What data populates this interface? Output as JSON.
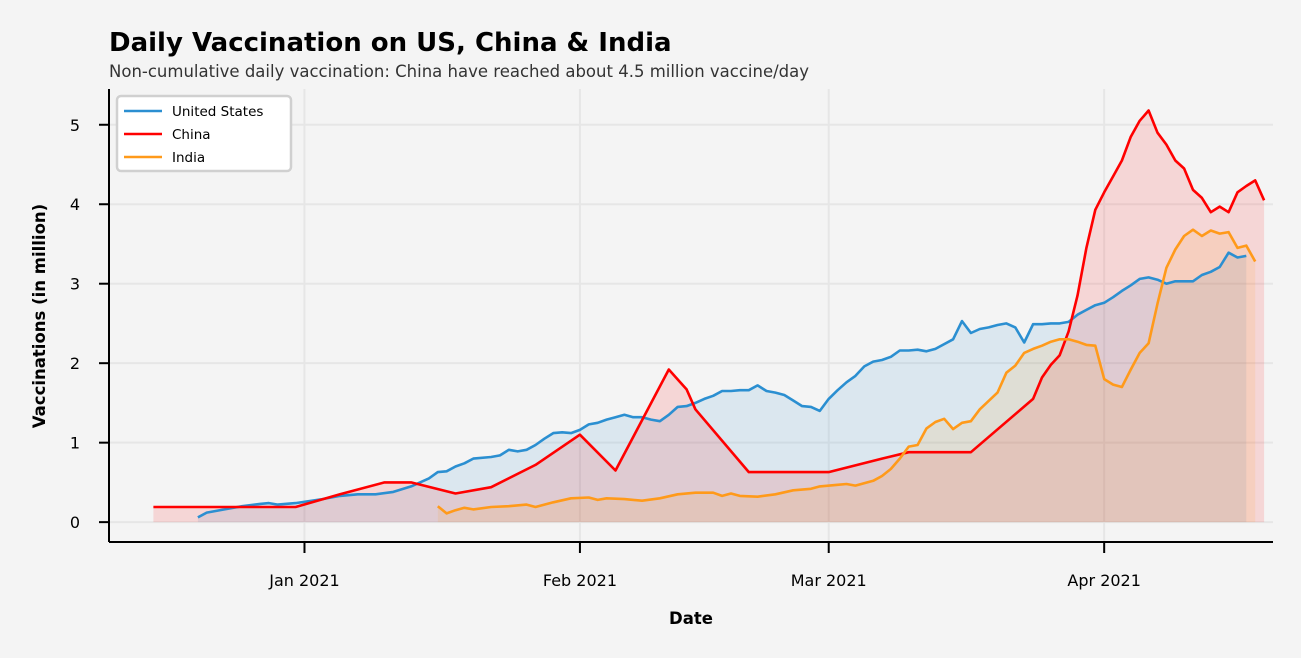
{
  "chart_data": {
    "type": "line",
    "title": "Daily Vaccination on US, China & India",
    "subtitle": "Non-cumulative daily vaccination: China have reached about 4.5 million vaccine/day",
    "xlabel": "Date",
    "ylabel": "Vaccinations (in million)",
    "x_ticks": [
      {
        "date": "2021-01-01",
        "label": "Jan 2021"
      },
      {
        "date": "2021-02-01",
        "label": "Feb 2021"
      },
      {
        "date": "2021-03-01",
        "label": "Mar 2021"
      },
      {
        "date": "2021-04-01",
        "label": "Apr 2021"
      }
    ],
    "y_ticks": [
      0,
      1,
      2,
      3,
      4,
      5
    ],
    "xlim": [
      "2020-12-10",
      "2021-04-20"
    ],
    "ylim": [
      -0.25,
      5.45
    ],
    "grid": true,
    "legend_position": "top-left",
    "series": [
      {
        "name": "United States",
        "color": "#2b8fd1",
        "points": [
          [
            "2020-12-20",
            0.06
          ],
          [
            "2020-12-21",
            0.12
          ],
          [
            "2020-12-23",
            0.16
          ],
          [
            "2020-12-25",
            0.2
          ],
          [
            "2020-12-27",
            0.23
          ],
          [
            "2020-12-28",
            0.24
          ],
          [
            "2020-12-29",
            0.22
          ],
          [
            "2020-12-31",
            0.24
          ],
          [
            "2021-01-03",
            0.29
          ],
          [
            "2021-01-05",
            0.33
          ],
          [
            "2021-01-07",
            0.35
          ],
          [
            "2021-01-09",
            0.35
          ],
          [
            "2021-01-11",
            0.38
          ],
          [
            "2021-01-13",
            0.45
          ],
          [
            "2021-01-15",
            0.55
          ],
          [
            "2021-01-16",
            0.63
          ],
          [
            "2021-01-17",
            0.64
          ],
          [
            "2021-01-18",
            0.7
          ],
          [
            "2021-01-19",
            0.74
          ],
          [
            "2021-01-20",
            0.8
          ],
          [
            "2021-01-22",
            0.82
          ],
          [
            "2021-01-23",
            0.84
          ],
          [
            "2021-01-24",
            0.91
          ],
          [
            "2021-01-25",
            0.89
          ],
          [
            "2021-01-26",
            0.91
          ],
          [
            "2021-01-27",
            0.97
          ],
          [
            "2021-01-28",
            1.05
          ],
          [
            "2021-01-29",
            1.12
          ],
          [
            "2021-01-30",
            1.13
          ],
          [
            "2021-01-31",
            1.12
          ],
          [
            "2021-02-01",
            1.16
          ],
          [
            "2021-02-02",
            1.23
          ],
          [
            "2021-02-03",
            1.25
          ],
          [
            "2021-02-04",
            1.29
          ],
          [
            "2021-02-05",
            1.32
          ],
          [
            "2021-02-06",
            1.35
          ],
          [
            "2021-02-07",
            1.32
          ],
          [
            "2021-02-08",
            1.32
          ],
          [
            "2021-02-09",
            1.29
          ],
          [
            "2021-02-10",
            1.27
          ],
          [
            "2021-02-11",
            1.35
          ],
          [
            "2021-02-12",
            1.45
          ],
          [
            "2021-02-13",
            1.46
          ],
          [
            "2021-02-14",
            1.5
          ],
          [
            "2021-02-15",
            1.55
          ],
          [
            "2021-02-16",
            1.59
          ],
          [
            "2021-02-17",
            1.65
          ],
          [
            "2021-02-18",
            1.65
          ],
          [
            "2021-02-19",
            1.66
          ],
          [
            "2021-02-20",
            1.66
          ],
          [
            "2021-02-21",
            1.72
          ],
          [
            "2021-02-22",
            1.65
          ],
          [
            "2021-02-23",
            1.63
          ],
          [
            "2021-02-24",
            1.6
          ],
          [
            "2021-02-25",
            1.53
          ],
          [
            "2021-02-26",
            1.46
          ],
          [
            "2021-02-27",
            1.45
          ],
          [
            "2021-02-28",
            1.4
          ],
          [
            "2021-03-01",
            1.55
          ],
          [
            "2021-03-02",
            1.66
          ],
          [
            "2021-03-03",
            1.76
          ],
          [
            "2021-03-04",
            1.84
          ],
          [
            "2021-03-05",
            1.96
          ],
          [
            "2021-03-06",
            2.02
          ],
          [
            "2021-03-07",
            2.04
          ],
          [
            "2021-03-08",
            2.08
          ],
          [
            "2021-03-09",
            2.16
          ],
          [
            "2021-03-10",
            2.16
          ],
          [
            "2021-03-11",
            2.17
          ],
          [
            "2021-03-12",
            2.15
          ],
          [
            "2021-03-13",
            2.18
          ],
          [
            "2021-03-14",
            2.24
          ],
          [
            "2021-03-15",
            2.3
          ],
          [
            "2021-03-16",
            2.53
          ],
          [
            "2021-03-17",
            2.38
          ],
          [
            "2021-03-18",
            2.43
          ],
          [
            "2021-03-19",
            2.45
          ],
          [
            "2021-03-20",
            2.48
          ],
          [
            "2021-03-21",
            2.5
          ],
          [
            "2021-03-22",
            2.45
          ],
          [
            "2021-03-23",
            2.26
          ],
          [
            "2021-03-24",
            2.49
          ],
          [
            "2021-03-25",
            2.49
          ],
          [
            "2021-03-26",
            2.5
          ],
          [
            "2021-03-27",
            2.5
          ],
          [
            "2021-03-28",
            2.52
          ],
          [
            "2021-03-29",
            2.61
          ],
          [
            "2021-03-30",
            2.67
          ],
          [
            "2021-03-31",
            2.73
          ],
          [
            "2021-04-01",
            2.76
          ],
          [
            "2021-04-02",
            2.83
          ],
          [
            "2021-04-03",
            2.91
          ],
          [
            "2021-04-04",
            2.98
          ],
          [
            "2021-04-05",
            3.06
          ],
          [
            "2021-04-06",
            3.08
          ],
          [
            "2021-04-07",
            3.05
          ],
          [
            "2021-04-08",
            3.0
          ],
          [
            "2021-04-09",
            3.03
          ],
          [
            "2021-04-10",
            3.03
          ],
          [
            "2021-04-11",
            3.03
          ],
          [
            "2021-04-12",
            3.11
          ],
          [
            "2021-04-13",
            3.15
          ],
          [
            "2021-04-14",
            3.21
          ],
          [
            "2021-04-15",
            3.39
          ],
          [
            "2021-04-16",
            3.33
          ],
          [
            "2021-04-17",
            3.35
          ]
        ]
      },
      {
        "name": "China",
        "color": "#ff0000",
        "points": [
          [
            "2020-12-15",
            0.19
          ],
          [
            "2020-12-25",
            0.19
          ],
          [
            "2020-12-31",
            0.19
          ],
          [
            "2021-01-05",
            0.35
          ],
          [
            "2021-01-10",
            0.5
          ],
          [
            "2021-01-13",
            0.5
          ],
          [
            "2021-01-18",
            0.36
          ],
          [
            "2021-01-22",
            0.44
          ],
          [
            "2021-01-27",
            0.72
          ],
          [
            "2021-02-01",
            1.1
          ],
          [
            "2021-02-05",
            0.65
          ],
          [
            "2021-02-11",
            1.92
          ],
          [
            "2021-02-13",
            1.67
          ],
          [
            "2021-02-14",
            1.42
          ],
          [
            "2021-02-20",
            0.63
          ],
          [
            "2021-03-01",
            0.63
          ],
          [
            "2021-03-07",
            0.8
          ],
          [
            "2021-03-10",
            0.88
          ],
          [
            "2021-03-17",
            0.88
          ],
          [
            "2021-03-24",
            1.55
          ],
          [
            "2021-03-25",
            1.82
          ],
          [
            "2021-03-26",
            1.98
          ],
          [
            "2021-03-27",
            2.1
          ],
          [
            "2021-03-28",
            2.4
          ],
          [
            "2021-03-29",
            2.85
          ],
          [
            "2021-03-30",
            3.45
          ],
          [
            "2021-03-31",
            3.93
          ],
          [
            "2021-04-01",
            4.15
          ],
          [
            "2021-04-02",
            4.35
          ],
          [
            "2021-04-03",
            4.55
          ],
          [
            "2021-04-04",
            4.85
          ],
          [
            "2021-04-05",
            5.05
          ],
          [
            "2021-04-06",
            5.18
          ],
          [
            "2021-04-07",
            4.9
          ],
          [
            "2021-04-08",
            4.75
          ],
          [
            "2021-04-09",
            4.55
          ],
          [
            "2021-04-10",
            4.45
          ],
          [
            "2021-04-11",
            4.18
          ],
          [
            "2021-04-12",
            4.08
          ],
          [
            "2021-04-13",
            3.9
          ],
          [
            "2021-04-14",
            3.97
          ],
          [
            "2021-04-15",
            3.9
          ],
          [
            "2021-04-16",
            4.15
          ],
          [
            "2021-04-17",
            4.23
          ],
          [
            "2021-04-18",
            4.3
          ],
          [
            "2021-04-19",
            4.05
          ]
        ]
      },
      {
        "name": "India",
        "color": "#ff9a1a",
        "points": [
          [
            "2021-01-16",
            0.2
          ],
          [
            "2021-01-17",
            0.11
          ],
          [
            "2021-01-18",
            0.15
          ],
          [
            "2021-01-19",
            0.18
          ],
          [
            "2021-01-20",
            0.16
          ],
          [
            "2021-01-22",
            0.19
          ],
          [
            "2021-01-24",
            0.2
          ],
          [
            "2021-01-26",
            0.22
          ],
          [
            "2021-01-27",
            0.19
          ],
          [
            "2021-01-29",
            0.25
          ],
          [
            "2021-01-31",
            0.3
          ],
          [
            "2021-02-02",
            0.31
          ],
          [
            "2021-02-03",
            0.28
          ],
          [
            "2021-02-04",
            0.3
          ],
          [
            "2021-02-06",
            0.29
          ],
          [
            "2021-02-08",
            0.27
          ],
          [
            "2021-02-10",
            0.3
          ],
          [
            "2021-02-12",
            0.35
          ],
          [
            "2021-02-14",
            0.37
          ],
          [
            "2021-02-16",
            0.37
          ],
          [
            "2021-02-17",
            0.33
          ],
          [
            "2021-02-18",
            0.36
          ],
          [
            "2021-02-19",
            0.33
          ],
          [
            "2021-02-21",
            0.32
          ],
          [
            "2021-02-23",
            0.35
          ],
          [
            "2021-02-25",
            0.4
          ],
          [
            "2021-02-27",
            0.42
          ],
          [
            "2021-02-28",
            0.45
          ],
          [
            "2021-03-02",
            0.47
          ],
          [
            "2021-03-03",
            0.48
          ],
          [
            "2021-03-04",
            0.46
          ],
          [
            "2021-03-06",
            0.52
          ],
          [
            "2021-03-07",
            0.58
          ],
          [
            "2021-03-08",
            0.67
          ],
          [
            "2021-03-09",
            0.8
          ],
          [
            "2021-03-10",
            0.95
          ],
          [
            "2021-03-11",
            0.97
          ],
          [
            "2021-03-12",
            1.18
          ],
          [
            "2021-03-13",
            1.26
          ],
          [
            "2021-03-14",
            1.3
          ],
          [
            "2021-03-15",
            1.17
          ],
          [
            "2021-03-16",
            1.25
          ],
          [
            "2021-03-17",
            1.27
          ],
          [
            "2021-03-18",
            1.42
          ],
          [
            "2021-03-20",
            1.63
          ],
          [
            "2021-03-21",
            1.88
          ],
          [
            "2021-03-22",
            1.97
          ],
          [
            "2021-03-23",
            2.13
          ],
          [
            "2021-03-24",
            2.18
          ],
          [
            "2021-03-25",
            2.22
          ],
          [
            "2021-03-26",
            2.27
          ],
          [
            "2021-03-27",
            2.3
          ],
          [
            "2021-03-28",
            2.3
          ],
          [
            "2021-03-29",
            2.27
          ],
          [
            "2021-03-30",
            2.23
          ],
          [
            "2021-03-31",
            2.22
          ],
          [
            "2021-04-01",
            1.8
          ],
          [
            "2021-04-02",
            1.73
          ],
          [
            "2021-04-03",
            1.7
          ],
          [
            "2021-04-04",
            1.92
          ],
          [
            "2021-04-05",
            2.13
          ],
          [
            "2021-04-06",
            2.25
          ],
          [
            "2021-04-07",
            2.75
          ],
          [
            "2021-04-08",
            3.2
          ],
          [
            "2021-04-09",
            3.43
          ],
          [
            "2021-04-10",
            3.6
          ],
          [
            "2021-04-11",
            3.68
          ],
          [
            "2021-04-12",
            3.6
          ],
          [
            "2021-04-13",
            3.67
          ],
          [
            "2021-04-14",
            3.63
          ],
          [
            "2021-04-15",
            3.65
          ],
          [
            "2021-04-16",
            3.45
          ],
          [
            "2021-04-17",
            3.48
          ],
          [
            "2021-04-18",
            3.28
          ]
        ]
      }
    ]
  }
}
